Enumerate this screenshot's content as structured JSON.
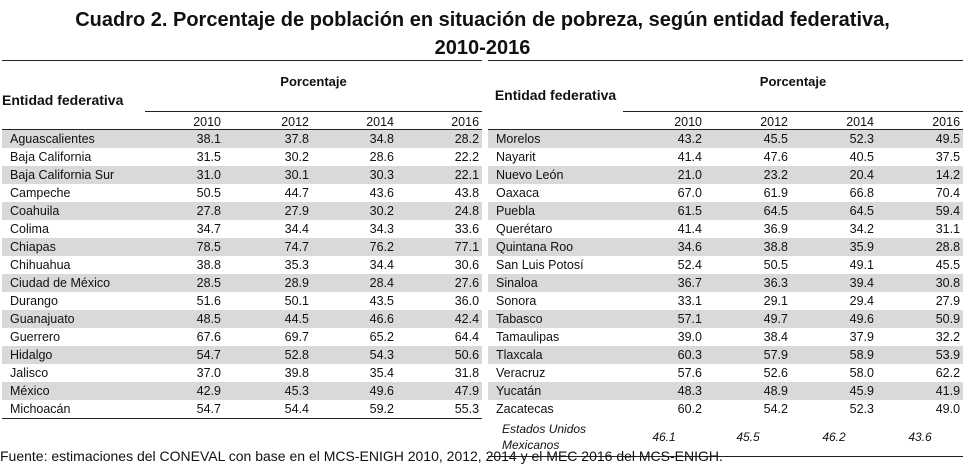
{
  "title_line1": "Cuadro 2. Porcentaje de población en situación de pobreza, según entidad federativa,",
  "title_line2": "2010-2016",
  "left": {
    "entity_header": "Entidad federativa",
    "pct_header": "Porcentaje",
    "years": [
      "2010",
      "2012",
      "2014",
      "2016"
    ],
    "rows": [
      {
        "name": "Aguascalientes",
        "v": [
          "38.1",
          "37.8",
          "34.8",
          "28.2"
        ],
        "shade": true
      },
      {
        "name": "Baja California",
        "v": [
          "31.5",
          "30.2",
          "28.6",
          "22.2"
        ],
        "shade": false
      },
      {
        "name": "Baja California Sur",
        "v": [
          "31.0",
          "30.1",
          "30.3",
          "22.1"
        ],
        "shade": true
      },
      {
        "name": "Campeche",
        "v": [
          "50.5",
          "44.7",
          "43.6",
          "43.8"
        ],
        "shade": false
      },
      {
        "name": "Coahuila",
        "v": [
          "27.8",
          "27.9",
          "30.2",
          "24.8"
        ],
        "shade": true
      },
      {
        "name": "Colima",
        "v": [
          "34.7",
          "34.4",
          "34.3",
          "33.6"
        ],
        "shade": false
      },
      {
        "name": "Chiapas",
        "v": [
          "78.5",
          "74.7",
          "76.2",
          "77.1"
        ],
        "shade": true
      },
      {
        "name": "Chihuahua",
        "v": [
          "38.8",
          "35.3",
          "34.4",
          "30.6"
        ],
        "shade": false
      },
      {
        "name": "Ciudad de México",
        "v": [
          "28.5",
          "28.9",
          "28.4",
          "27.6"
        ],
        "shade": true
      },
      {
        "name": "Durango",
        "v": [
          "51.6",
          "50.1",
          "43.5",
          "36.0"
        ],
        "shade": false
      },
      {
        "name": "Guanajuato",
        "v": [
          "48.5",
          "44.5",
          "46.6",
          "42.4"
        ],
        "shade": true
      },
      {
        "name": "Guerrero",
        "v": [
          "67.6",
          "69.7",
          "65.2",
          "64.4"
        ],
        "shade": false
      },
      {
        "name": "Hidalgo",
        "v": [
          "54.7",
          "52.8",
          "54.3",
          "50.6"
        ],
        "shade": true
      },
      {
        "name": "Jalisco",
        "v": [
          "37.0",
          "39.8",
          "35.4",
          "31.8"
        ],
        "shade": false
      },
      {
        "name": "México",
        "v": [
          "42.9",
          "45.3",
          "49.6",
          "47.9"
        ],
        "shade": true
      },
      {
        "name": "Michoacán",
        "v": [
          "54.7",
          "54.4",
          "59.2",
          "55.3"
        ],
        "shade": false
      }
    ]
  },
  "right": {
    "entity_header": "Entidad federativa",
    "pct_header": "Porcentaje",
    "years": [
      "2010",
      "2012",
      "2014",
      "2016"
    ],
    "rows": [
      {
        "name": "Morelos",
        "v": [
          "43.2",
          "45.5",
          "52.3",
          "49.5"
        ],
        "shade": true
      },
      {
        "name": "Nayarit",
        "v": [
          "41.4",
          "47.6",
          "40.5",
          "37.5"
        ],
        "shade": false
      },
      {
        "name": "Nuevo León",
        "v": [
          "21.0",
          "23.2",
          "20.4",
          "14.2"
        ],
        "shade": true
      },
      {
        "name": "Oaxaca",
        "v": [
          "67.0",
          "61.9",
          "66.8",
          "70.4"
        ],
        "shade": false
      },
      {
        "name": "Puebla",
        "v": [
          "61.5",
          "64.5",
          "64.5",
          "59.4"
        ],
        "shade": true
      },
      {
        "name": "Querétaro",
        "v": [
          "41.4",
          "36.9",
          "34.2",
          "31.1"
        ],
        "shade": false
      },
      {
        "name": "Quintana Roo",
        "v": [
          "34.6",
          "38.8",
          "35.9",
          "28.8"
        ],
        "shade": true
      },
      {
        "name": "San Luis Potosí",
        "v": [
          "52.4",
          "50.5",
          "49.1",
          "45.5"
        ],
        "shade": false
      },
      {
        "name": "Sinaloa",
        "v": [
          "36.7",
          "36.3",
          "39.4",
          "30.8"
        ],
        "shade": true
      },
      {
        "name": "Sonora",
        "v": [
          "33.1",
          "29.1",
          "29.4",
          "27.9"
        ],
        "shade": false
      },
      {
        "name": "Tabasco",
        "v": [
          "57.1",
          "49.7",
          "49.6",
          "50.9"
        ],
        "shade": true
      },
      {
        "name": "Tamaulipas",
        "v": [
          "39.0",
          "38.4",
          "37.9",
          "32.2"
        ],
        "shade": false
      },
      {
        "name": "Tlaxcala",
        "v": [
          "60.3",
          "57.9",
          "58.9",
          "53.9"
        ],
        "shade": true
      },
      {
        "name": "Veracruz",
        "v": [
          "57.6",
          "52.6",
          "58.0",
          "62.2"
        ],
        "shade": false
      },
      {
        "name": "Yucatán",
        "v": [
          "48.3",
          "48.9",
          "45.9",
          "41.9"
        ],
        "shade": true
      },
      {
        "name": "Zacatecas",
        "v": [
          "60.2",
          "54.2",
          "52.3",
          "49.0"
        ],
        "shade": false
      }
    ],
    "total": {
      "name": "Estados Unidos Mexicanos",
      "v": [
        "46.1",
        "45.5",
        "46.2",
        "43.6"
      ]
    }
  },
  "source": "Fuente: estimaciones del CONEVAL con base en el MCS-ENIGH 2010, 2012, 2014 y el MEC 2016 del MCS-ENIGH."
}
